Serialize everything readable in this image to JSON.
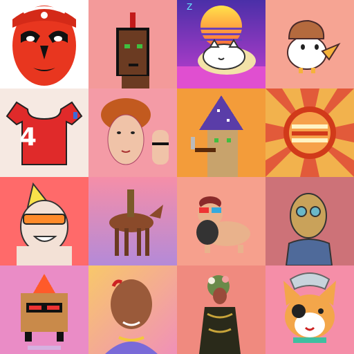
{
  "gallery": {
    "tiles": [
      {
        "name": "opera-mask",
        "bg": "#ffffff"
      },
      {
        "name": "pixel-punk-mohawk",
        "bg": "#f39a9a"
      },
      {
        "name": "synthwave-cat",
        "bg": "#5a3fb0"
      },
      {
        "name": "duck",
        "bg": "#f6a493"
      },
      {
        "name": "jersey",
        "bg": "#f6e9e2",
        "jersey_number": "4"
      },
      {
        "name": "curly-hair-person",
        "bg": "#f49ba6"
      },
      {
        "name": "pixel-wizard",
        "bg": "#f39c3a"
      },
      {
        "name": "sunburst-badge",
        "bg": "#f2b24d"
      },
      {
        "name": "punk-goggles",
        "bg": "#ff6a6a"
      },
      {
        "name": "horse-rider",
        "bg": "#f7a0a4"
      },
      {
        "name": "3d-glasses-dog",
        "bg": "#f6a08d"
      },
      {
        "name": "zombie-man",
        "bg": "#cd7278"
      },
      {
        "name": "pixel-creature",
        "bg": "#ea8cc6"
      },
      {
        "name": "bald-man",
        "bg": "#f7b58f"
      },
      {
        "name": "floral-figure",
        "bg": "#f08a7f"
      },
      {
        "name": "shiba-dog",
        "bg": "#f58ea8"
      }
    ]
  }
}
